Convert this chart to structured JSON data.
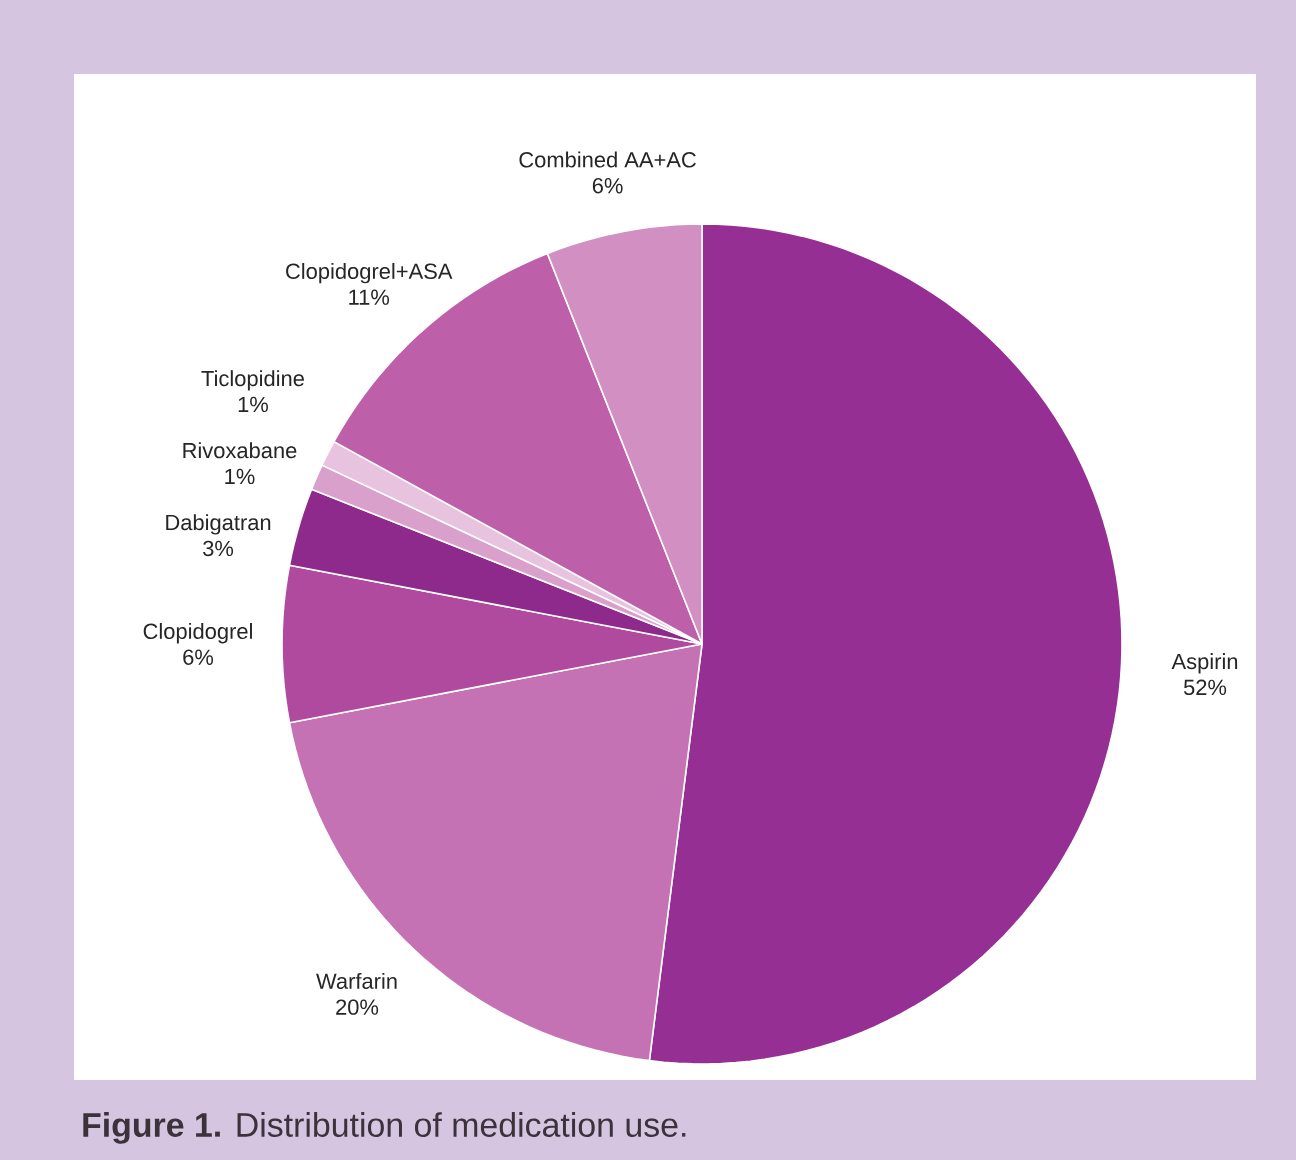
{
  "chart_data": {
    "type": "pie",
    "title": "**Figure 1.** Distribution of medication use.",
    "categories": [
      "Aspirin",
      "Warfarin",
      "Clopidogrel",
      "Dabigatran",
      "Rivoxabane",
      "Ticlopidine",
      "Clopidogrel+ASA",
      "Combined AA+AC"
    ],
    "values": [
      52,
      20,
      6,
      3,
      1,
      1,
      11,
      6
    ],
    "value_labels": [
      "52%",
      "20%",
      "6%",
      "3%",
      "1%",
      "1%",
      "11%",
      "6%"
    ],
    "colors": [
      "#952f93",
      "#c472b4",
      "#b04a9e",
      "#8e2a8c",
      "#d9a0cc",
      "#e8c3e0",
      "#bd5fa9",
      "#d28fc2"
    ]
  }
}
